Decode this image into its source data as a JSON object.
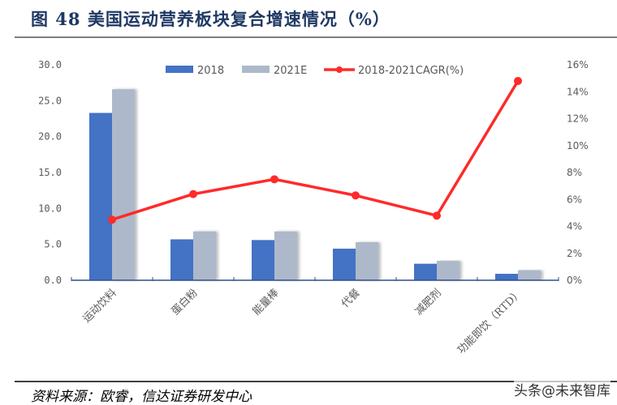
{
  "title": "图 48 美国运动营养板块复合增速情况（%）",
  "source": "资料来源：欧睿，信达证券研发中心",
  "watermark": "头条@未来智库",
  "colors": {
    "bar_2018": "#4472c4",
    "bar_2021E": "#adb9ca",
    "line_cagr": "#ff2a2a",
    "axis": "#2f4f8f",
    "title": "#1f3864"
  },
  "chart_data": {
    "type": "bar+line",
    "title": "美国运动营养板块复合增速情况（%）",
    "categories": [
      "运动饮料",
      "蛋白粉",
      "能量棒",
      "代餐",
      "减肥剂",
      "功能即饮（RTD）"
    ],
    "series": [
      {
        "name": "2018",
        "type": "bar",
        "axis": "left",
        "values": [
          23.3,
          5.7,
          5.6,
          4.4,
          2.3,
          0.9
        ]
      },
      {
        "name": "2021E",
        "type": "bar",
        "axis": "left",
        "values": [
          26.6,
          6.8,
          6.8,
          5.3,
          2.7,
          1.4
        ]
      },
      {
        "name": "2018-2021CAGR(%)",
        "type": "line",
        "axis": "right",
        "values": [
          4.5,
          6.4,
          7.5,
          6.3,
          4.8,
          14.8
        ]
      }
    ],
    "left_axis": {
      "ylim": [
        0,
        30
      ],
      "ticks": [
        "0.0",
        "5.0",
        "10.0",
        "15.0",
        "20.0",
        "25.0",
        "30.0"
      ]
    },
    "right_axis": {
      "ylim": [
        0,
        16
      ],
      "ticks": [
        "0%",
        "2%",
        "4%",
        "6%",
        "8%",
        "10%",
        "12%",
        "14%",
        "16%"
      ]
    },
    "legend": {
      "position": "top",
      "entries": [
        "2018",
        "2021E",
        "2018-2021CAGR(%)"
      ]
    },
    "grid": false,
    "xlabel": "",
    "ylabel": ""
  }
}
